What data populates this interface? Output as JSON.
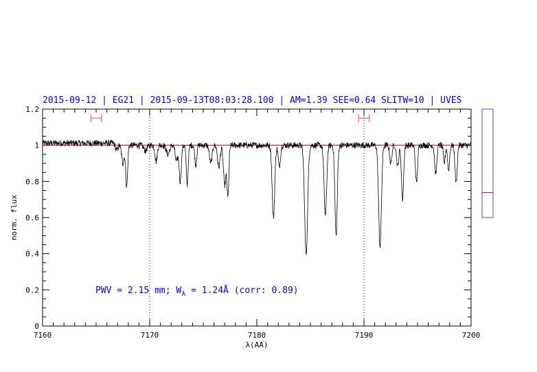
{
  "chart_data": {
    "type": "line",
    "title": "2015-09-12 | EG21 | 2015-09-13T08:03:28.100 | AM=1.39  SEE=0.64  SLITW=10 | UVES",
    "xlabel": "λ(AA)",
    "ylabel": "norm. flux",
    "xlim": [
      7160,
      7200
    ],
    "ylim": [
      0,
      1.2
    ],
    "xticks": [
      "7160",
      "7170",
      "7180",
      "7190",
      "7200"
    ],
    "yticks": [
      "0",
      "0.2",
      "0.4",
      "0.6",
      "0.8",
      "1",
      "1.2"
    ],
    "continuum_level": 1.0,
    "vertical_markers": [
      7170,
      7190
    ],
    "error_bars": [
      {
        "center": 7165.0,
        "low": 7164.5,
        "high": 7165.5,
        "y": 1.15
      },
      {
        "center": 7190.0,
        "low": 7189.5,
        "high": 7190.5,
        "y": 1.15
      }
    ],
    "annotation": {
      "prefix": "PWV = 2.15 mm; W",
      "subscript": "λ",
      "suffix": " = 1.24Å (corr: 0.89)",
      "position_data": [
        7165,
        0.2
      ]
    },
    "absorption_lines": [
      {
        "x": 7166.9,
        "depth": 0.04,
        "w": 0.1
      },
      {
        "x": 7167.5,
        "depth": 0.1,
        "w": 0.12
      },
      {
        "x": 7167.85,
        "depth": 0.23,
        "w": 0.09
      },
      {
        "x": 7169.6,
        "depth": 0.03,
        "w": 0.15
      },
      {
        "x": 7170.6,
        "depth": 0.09,
        "w": 0.1
      },
      {
        "x": 7171.7,
        "depth": 0.05,
        "w": 0.15
      },
      {
        "x": 7172.5,
        "depth": 0.09,
        "w": 0.12
      },
      {
        "x": 7172.85,
        "depth": 0.2,
        "w": 0.1
      },
      {
        "x": 7173.5,
        "depth": 0.22,
        "w": 0.09
      },
      {
        "x": 7174.3,
        "depth": 0.11,
        "w": 0.09
      },
      {
        "x": 7175.7,
        "depth": 0.1,
        "w": 0.12
      },
      {
        "x": 7176.45,
        "depth": 0.12,
        "w": 0.12
      },
      {
        "x": 7177.0,
        "depth": 0.22,
        "w": 0.12
      },
      {
        "x": 7177.3,
        "depth": 0.28,
        "w": 0.09
      },
      {
        "x": 7181.55,
        "depth": 0.4,
        "w": 0.12
      },
      {
        "x": 7182.1,
        "depth": 0.12,
        "w": 0.1
      },
      {
        "x": 7184.6,
        "depth": 0.6,
        "w": 0.14
      },
      {
        "x": 7186.4,
        "depth": 0.39,
        "w": 0.12
      },
      {
        "x": 7187.4,
        "depth": 0.5,
        "w": 0.11
      },
      {
        "x": 7191.5,
        "depth": 0.56,
        "w": 0.13
      },
      {
        "x": 7192.5,
        "depth": 0.1,
        "w": 0.1
      },
      {
        "x": 7193.15,
        "depth": 0.12,
        "w": 0.1
      },
      {
        "x": 7193.6,
        "depth": 0.3,
        "w": 0.1
      },
      {
        "x": 7194.9,
        "depth": 0.21,
        "w": 0.1
      },
      {
        "x": 7196.7,
        "depth": 0.16,
        "w": 0.1
      },
      {
        "x": 7197.5,
        "depth": 0.1,
        "w": 0.09
      },
      {
        "x": 7197.9,
        "depth": 0.14,
        "w": 0.09
      },
      {
        "x": 7198.6,
        "depth": 0.21,
        "w": 0.1
      }
    ],
    "side_panel": {
      "ylim": [
        0,
        1.0
      ],
      "marker_value": 0.23
    }
  },
  "colors": {
    "title": "#0000ff",
    "annotation": "#0000ff",
    "continuum": "#cc0000",
    "errorbar": "#ff4444",
    "spectrum": "#000000",
    "side_panel_border": "#4444ff",
    "side_panel_marker": "#aa0000"
  }
}
